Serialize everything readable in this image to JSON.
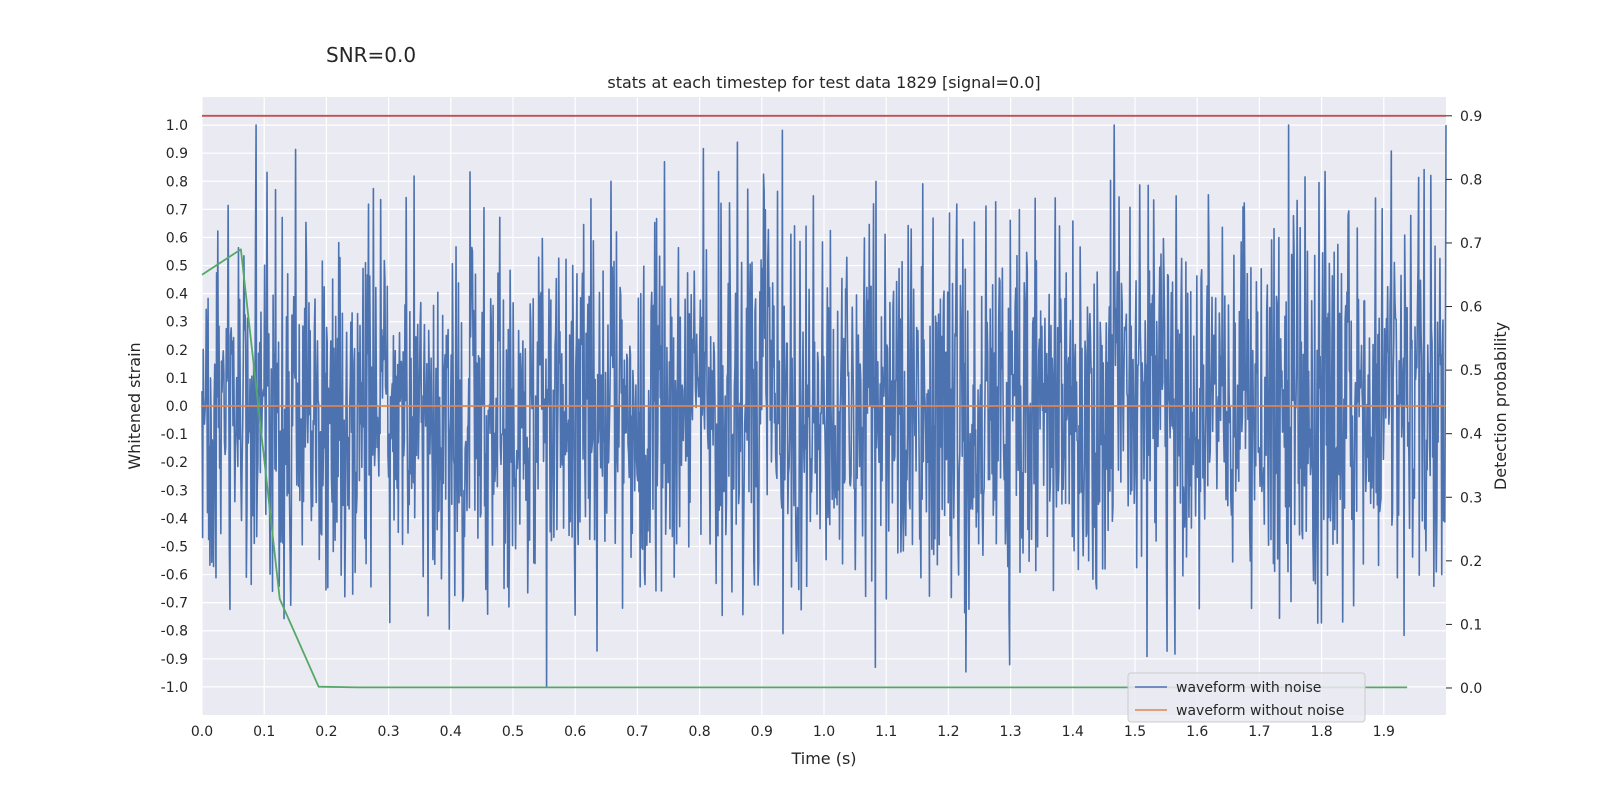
{
  "chart_data": {
    "type": "line",
    "suptitle": "SNR=0.0",
    "title": "stats at each timestep for test data 1829 [signal=0.0]",
    "xlabel": "Time (s)",
    "ylabel": "Whitened strain",
    "y2label": "Detection probability",
    "xlim": [
      0.0,
      2.0
    ],
    "ylim": [
      -1.1,
      1.1
    ],
    "y2lim": [
      -0.0425,
      0.9296
    ],
    "xticks": [
      "0.0",
      "0.1",
      "0.2",
      "0.3",
      "0.4",
      "0.5",
      "0.6",
      "0.7",
      "0.8",
      "0.9",
      "1.0",
      "1.1",
      "1.2",
      "1.3",
      "1.4",
      "1.5",
      "1.6",
      "1.7",
      "1.8",
      "1.9"
    ],
    "yticks": [
      "1.0",
      "0.9",
      "0.8",
      "0.7",
      "0.6",
      "0.5",
      "0.4",
      "0.3",
      "0.2",
      "0.1",
      "0.0",
      "-0.1",
      "-0.2",
      "-0.3",
      "-0.4",
      "-0.5",
      "-0.6",
      "-0.7",
      "-0.8",
      "-0.9",
      "-1.0"
    ],
    "y2ticks": [
      "0.9",
      "0.8",
      "0.7",
      "0.6",
      "0.5",
      "0.4",
      "0.3",
      "0.2",
      "0.1",
      "0.0"
    ],
    "grid": true,
    "legend_position": "lower-right",
    "series": [
      {
        "name": "waveform with noise",
        "axis": "left",
        "color": "#4c72b0",
        "style": "noise",
        "x_range": [
          0.0,
          2.0
        ],
        "n_points": 2048,
        "approx_std": 0.35,
        "y_range": [
          -1.0,
          1.0
        ],
        "seed": 1829
      },
      {
        "name": "waveform without noise",
        "axis": "left",
        "color": "#dd8452",
        "x": [
          0.0,
          2.0
        ],
        "values": [
          0.0,
          0.0
        ]
      },
      {
        "name": "threshold",
        "axis": "right",
        "color": "#c44e52",
        "x": [
          0.0,
          2.0
        ],
        "values": [
          0.9,
          0.9
        ],
        "show_in_legend": false
      },
      {
        "name": "detection probability",
        "axis": "right",
        "color": "#55a868",
        "x": [
          0.0,
          0.0625,
          0.125,
          0.1875,
          0.25,
          0.3125,
          0.5,
          0.75,
          1.0,
          1.25,
          1.5,
          1.75,
          1.9375
        ],
        "values": [
          0.65,
          0.69,
          0.14,
          0.002,
          0.001,
          0.001,
          0.001,
          0.001,
          0.001,
          0.001,
          0.001,
          0.001,
          0.001
        ],
        "show_in_legend": false
      }
    ],
    "legend": [
      "waveform with noise",
      "waveform without noise"
    ]
  }
}
